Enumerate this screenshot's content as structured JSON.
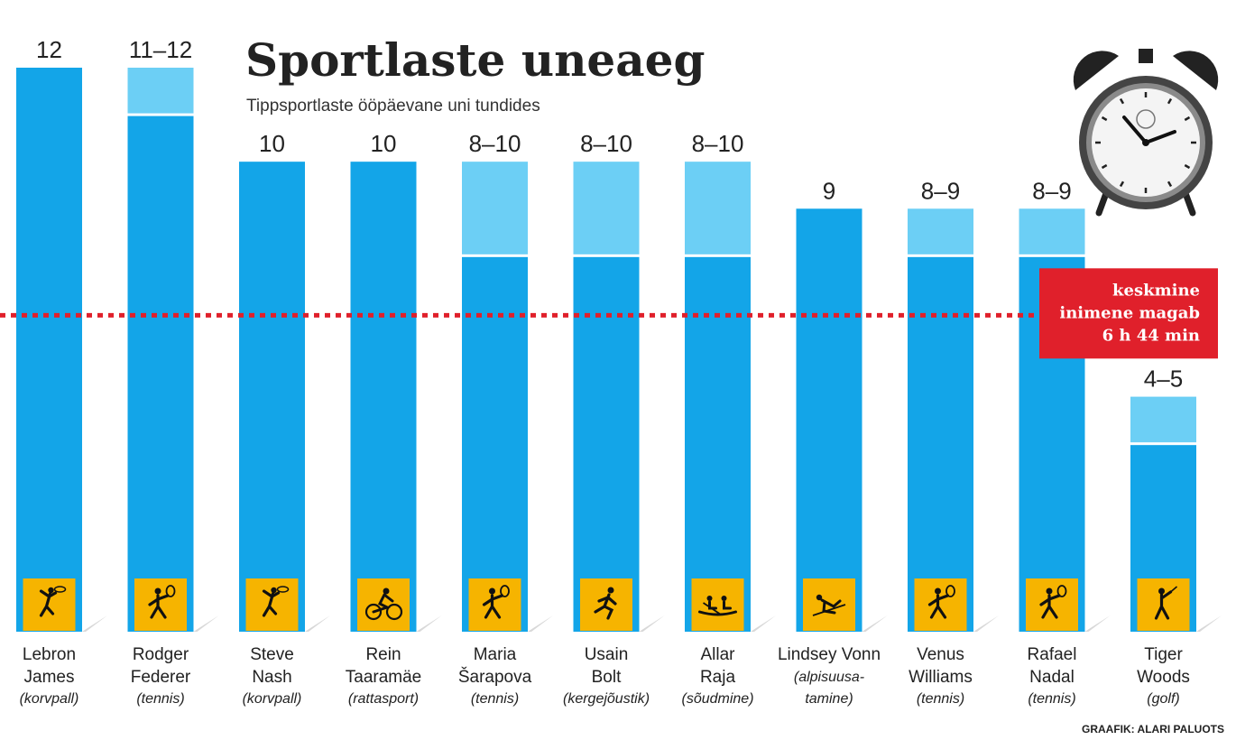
{
  "chart_data": {
    "type": "bar",
    "title": "Sportlaste uneaeg",
    "subtitle": "Tippsportlaste ööpäevane uni tundides",
    "ylim": [
      0,
      12
    ],
    "grid": false,
    "athletes": [
      {
        "first": "Lebron",
        "last": "James",
        "sport": "(korvpall)",
        "label": "12",
        "min": 12,
        "max": 12,
        "icon": "basketball-icon"
      },
      {
        "first": "Rodger",
        "last": "Federer",
        "sport": "(tennis)",
        "label": "11–12",
        "min": 11,
        "max": 12,
        "icon": "tennis-icon"
      },
      {
        "first": "Steve",
        "last": "Nash",
        "sport": "(korvpall)",
        "label": "10",
        "min": 10,
        "max": 10,
        "icon": "basketball-icon"
      },
      {
        "first": "Rein",
        "last": "Taaramäe",
        "sport": "(rattasport)",
        "label": "10",
        "min": 10,
        "max": 10,
        "icon": "cycling-icon"
      },
      {
        "first": "Maria",
        "last": "Šarapova",
        "sport": "(tennis)",
        "label": "8–10",
        "min": 8,
        "max": 10,
        "icon": "tennis-icon"
      },
      {
        "first": "Usain",
        "last": "Bolt",
        "sport": "(kergejõustik)",
        "label": "8–10",
        "min": 8,
        "max": 10,
        "icon": "running-icon"
      },
      {
        "first": "Allar",
        "last": "Raja",
        "sport": "(sõudmine)",
        "label": "8–10",
        "min": 8,
        "max": 10,
        "icon": "rowing-icon"
      },
      {
        "first": "Lindsey Vonn",
        "last": "",
        "sport": "(alpisuusa-",
        "sport2": "tamine)",
        "label": "9",
        "min": 9,
        "max": 9,
        "icon": "skiing-icon"
      },
      {
        "first": "Venus",
        "last": "Williams",
        "sport": "(tennis)",
        "label": "8–9",
        "min": 8,
        "max": 9,
        "icon": "tennis-icon"
      },
      {
        "first": "Rafael",
        "last": "Nadal",
        "sport": "(tennis)",
        "label": "8–9",
        "min": 8,
        "max": 9,
        "icon": "tennis-icon"
      },
      {
        "first": "Tiger",
        "last": "Woods",
        "sport": "(golf)",
        "label": "4–5",
        "min": 4,
        "max": 5,
        "icon": "golf-icon"
      }
    ],
    "reference": {
      "value": 6.733,
      "lines": [
        "keskmine",
        "inimene magab",
        "6 h 44 min"
      ]
    },
    "colors": {
      "bar": "#13a5e8",
      "range": "#6ccff5",
      "reference": "#e0202b",
      "icon_bg": "#f6b400"
    }
  },
  "credit": "GRAAFIK: ALARI PALUOTS",
  "decor_icon": "alarm-clock-icon"
}
